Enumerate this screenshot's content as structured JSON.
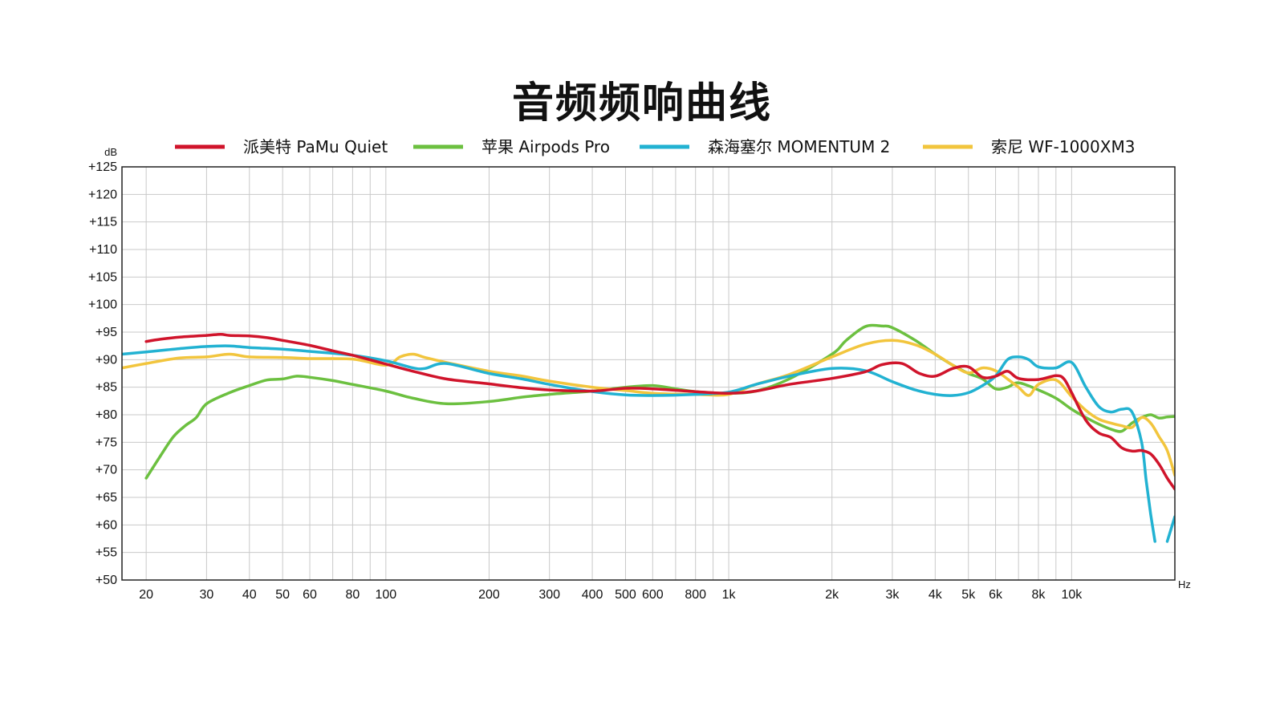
{
  "chart_data": {
    "type": "line",
    "title": "音频频响曲线",
    "xlabel": "Hz",
    "ylabel": "dB",
    "x_scale": "log",
    "xlim": [
      17,
      20000
    ],
    "ylim": [
      50,
      125
    ],
    "grid": true,
    "legend_position": "top",
    "y_ticks": [
      50,
      55,
      60,
      65,
      70,
      75,
      80,
      85,
      90,
      95,
      100,
      105,
      110,
      115,
      120,
      125
    ],
    "y_tick_labels": [
      "+50",
      "+55",
      "+60",
      "+65",
      "+70",
      "+75",
      "+80",
      "+85",
      "+90",
      "+95",
      "+100",
      "+105",
      "+110",
      "+115",
      "+120",
      "+125"
    ],
    "x_tick_values": [
      20,
      30,
      40,
      50,
      60,
      80,
      100,
      200,
      300,
      400,
      500,
      600,
      800,
      1000,
      2000,
      3000,
      4000,
      5000,
      6000,
      8000,
      10000
    ],
    "x_tick_labels": [
      "20",
      "30",
      "40",
      "50",
      "60",
      "80",
      "100",
      "200",
      "300",
      "400",
      "500",
      "600",
      "800",
      "1k",
      "2k",
      "3k",
      "4k",
      "5k",
      "6k",
      "8k",
      "10k"
    ],
    "x_grid_values": [
      20,
      30,
      40,
      50,
      60,
      70,
      80,
      90,
      100,
      200,
      300,
      400,
      500,
      600,
      700,
      800,
      900,
      1000,
      2000,
      3000,
      4000,
      5000,
      6000,
      7000,
      8000,
      9000,
      10000
    ],
    "series": [
      {
        "name": "派美特 PaMu Quiet",
        "color": "#d0142b",
        "x": [
          20,
          22,
          25,
          30,
          33,
          35,
          40,
          45,
          50,
          60,
          70,
          80,
          100,
          120,
          150,
          200,
          250,
          300,
          400,
          500,
          600,
          800,
          1000,
          1200,
          1500,
          2000,
          2500,
          2800,
          3200,
          3600,
          4000,
          4500,
          5000,
          5500,
          6000,
          6500,
          7000,
          8000,
          9000,
          9500,
          10000,
          11000,
          12000,
          13000,
          14000,
          15000,
          16000,
          17000,
          18000,
          19000,
          20000
        ],
        "y": [
          93.3,
          93.7,
          94.1,
          94.4,
          94.6,
          94.4,
          94.3,
          94.0,
          93.5,
          92.6,
          91.6,
          90.8,
          89.2,
          87.9,
          86.5,
          85.6,
          84.9,
          84.5,
          84.3,
          84.8,
          84.7,
          84.2,
          83.9,
          84.3,
          85.5,
          86.6,
          87.8,
          89.1,
          89.3,
          87.5,
          87.0,
          88.4,
          88.7,
          86.8,
          87.0,
          87.9,
          86.6,
          86.4,
          87.1,
          86.5,
          84.0,
          79.0,
          76.7,
          75.9,
          74.0,
          73.4,
          73.5,
          72.9,
          71.0,
          68.5,
          66.5
        ]
      },
      {
        "name": "苹果 Airpods Pro",
        "color": "#6cc040",
        "x": [
          20,
          22,
          24,
          26,
          28,
          30,
          35,
          40,
          45,
          50,
          55,
          60,
          70,
          80,
          100,
          120,
          150,
          200,
          250,
          300,
          400,
          500,
          600,
          700,
          800,
          1000,
          1200,
          1500,
          2000,
          2200,
          2500,
          2800,
          3000,
          3500,
          4000,
          4500,
          5000,
          5500,
          6000,
          6500,
          7000,
          8000,
          9000,
          10000,
          11000,
          12000,
          13000,
          14000,
          15000,
          16000,
          17000,
          18000,
          19000,
          20000
        ],
        "y": [
          68.5,
          72.5,
          76.0,
          78.0,
          79.5,
          82.0,
          84.0,
          85.3,
          86.3,
          86.5,
          87.0,
          86.8,
          86.2,
          85.5,
          84.3,
          83.0,
          82.0,
          82.4,
          83.2,
          83.7,
          84.3,
          85.0,
          85.3,
          84.7,
          84.2,
          83.9,
          84.3,
          86.5,
          91.0,
          93.5,
          96.0,
          96.1,
          95.8,
          93.5,
          91.0,
          89.0,
          87.5,
          86.5,
          84.7,
          85.0,
          85.8,
          84.5,
          83.0,
          81.0,
          79.5,
          78.3,
          77.4,
          77.0,
          78.5,
          79.5,
          80.0,
          79.4,
          79.6,
          79.7
        ]
      },
      {
        "name": "森海塞尔 MOMENTUM 2",
        "color": "#22b2d2",
        "x": [
          17,
          20,
          25,
          30,
          35,
          40,
          50,
          60,
          80,
          100,
          120,
          130,
          150,
          200,
          250,
          300,
          400,
          500,
          600,
          800,
          1000,
          1200,
          1500,
          2000,
          2500,
          3000,
          3500,
          4000,
          4500,
          5000,
          5500,
          6000,
          6500,
          7000,
          7500,
          8000,
          9000,
          10000,
          11000,
          12000,
          13000,
          14000,
          15000,
          16000,
          16500,
          17000,
          17500,
          18000,
          18500,
          19000,
          19500,
          20000
        ],
        "y": [
          91.0,
          91.4,
          92.0,
          92.4,
          92.5,
          92.2,
          91.9,
          91.5,
          90.8,
          89.8,
          88.5,
          88.4,
          89.3,
          87.5,
          86.5,
          85.5,
          84.2,
          83.6,
          83.5,
          83.7,
          84.1,
          85.5,
          87.0,
          88.4,
          88.0,
          86.0,
          84.5,
          83.7,
          83.5,
          84.0,
          85.3,
          87.0,
          90.0,
          90.5,
          90.0,
          88.7,
          88.5,
          89.5,
          85.0,
          81.5,
          80.5,
          81.0,
          80.5,
          75.0,
          68.0,
          62.0,
          57.0,
          null,
          null,
          null,
          null,
          null
        ],
        "y_tail": [
          [
            19000,
            57.0
          ],
          [
            20000,
            61.5
          ]
        ]
      },
      {
        "name": "索尼 WF-1000XM3",
        "color": "#f2c53d",
        "x": [
          17,
          20,
          25,
          30,
          35,
          40,
          50,
          60,
          80,
          100,
          110,
          120,
          130,
          150,
          200,
          250,
          300,
          400,
          500,
          600,
          800,
          1000,
          1200,
          1500,
          2000,
          2500,
          3000,
          3500,
          4000,
          4500,
          5000,
          5500,
          6000,
          6500,
          7000,
          7500,
          8000,
          9000,
          10000,
          11000,
          12000,
          13000,
          14000,
          15000,
          16000,
          17000,
          18000,
          19000,
          20000
        ],
        "y": [
          88.5,
          89.3,
          90.3,
          90.5,
          91.0,
          90.5,
          90.4,
          90.2,
          90.1,
          89.0,
          90.5,
          91.0,
          90.4,
          89.5,
          87.9,
          87.0,
          86.1,
          85.0,
          84.4,
          83.9,
          83.7,
          83.7,
          85.5,
          87.3,
          90.5,
          92.8,
          93.5,
          92.7,
          91.0,
          89.0,
          87.6,
          88.5,
          88.0,
          86.5,
          85.0,
          83.5,
          85.5,
          86.3,
          83.3,
          80.8,
          79.2,
          78.5,
          78.0,
          77.7,
          79.5,
          78.5,
          76.0,
          73.5,
          69.0
        ]
      }
    ]
  }
}
